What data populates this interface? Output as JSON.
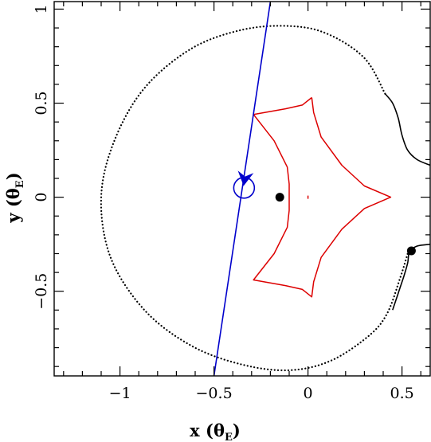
{
  "chart_data": {
    "type": "scatter",
    "xlabel": "x",
    "xlabel_unit": "θ",
    "xlabel_sub": "E",
    "ylabel": "y",
    "ylabel_unit": "θ",
    "ylabel_sub": "E",
    "xlim": [
      -1.35,
      0.65
    ],
    "ylim": [
      -0.95,
      1.04
    ],
    "x_ticks_major": [
      -1,
      -0.5,
      0,
      0.5
    ],
    "x_tick_labels": [
      "−1",
      "−0.5",
      "0",
      "0.5"
    ],
    "y_ticks_major": [
      -0.5,
      0,
      0.5,
      1
    ],
    "y_tick_labels": [
      "−0.5",
      "0",
      "0.5",
      "1"
    ],
    "minor_tick_step": 0.1,
    "grid": false,
    "colors": {
      "critical_curve": "#000000",
      "caustic": "#dd0000",
      "trajectory": "#0000cc",
      "axes": "#000000"
    },
    "critical_curve_outer": {
      "style": "dotted",
      "points": [
        [
          0.41,
          0.55
        ],
        [
          0.3,
          0.74
        ],
        [
          0.1,
          0.87
        ],
        [
          -0.1,
          0.91
        ],
        [
          -0.35,
          0.89
        ],
        [
          -0.62,
          0.79
        ],
        [
          -0.87,
          0.58
        ],
        [
          -1.03,
          0.3
        ],
        [
          -1.1,
          0.0
        ],
        [
          -1.05,
          -0.32
        ],
        [
          -0.87,
          -0.6
        ],
        [
          -0.62,
          -0.79
        ],
        [
          -0.35,
          -0.89
        ],
        [
          -0.1,
          -0.92
        ],
        [
          0.12,
          -0.87
        ],
        [
          0.32,
          -0.74
        ],
        [
          0.42,
          -0.62
        ],
        [
          0.49,
          -0.43
        ],
        [
          0.53,
          -0.3
        ]
      ]
    },
    "critical_curve_right_top": {
      "style": "solid",
      "points": [
        [
          0.41,
          0.55
        ],
        [
          0.45,
          0.5
        ],
        [
          0.48,
          0.42
        ],
        [
          0.5,
          0.33
        ],
        [
          0.53,
          0.25
        ],
        [
          0.58,
          0.2
        ],
        [
          0.65,
          0.17
        ]
      ]
    },
    "critical_curve_right_bottom": {
      "style": "solid",
      "points": [
        [
          0.45,
          -0.6
        ],
        [
          0.48,
          -0.51
        ],
        [
          0.51,
          -0.42
        ],
        [
          0.53,
          -0.35
        ],
        [
          0.54,
          -0.29
        ],
        [
          0.58,
          -0.26
        ],
        [
          0.65,
          -0.25
        ]
      ]
    },
    "caustic": {
      "cusps": [
        [
          0.02,
          0.53
        ],
        [
          0.44,
          0.0
        ],
        [
          0.02,
          -0.53
        ],
        [
          -0.29,
          -0.44
        ],
        [
          -0.29,
          0.44
        ],
        [
          -0.1,
          0.0
        ]
      ],
      "points": [
        [
          0.02,
          0.53
        ],
        [
          0.03,
          0.45
        ],
        [
          0.07,
          0.32
        ],
        [
          0.18,
          0.17
        ],
        [
          0.3,
          0.06
        ],
        [
          0.44,
          0.0
        ],
        [
          0.3,
          -0.06
        ],
        [
          0.18,
          -0.17
        ],
        [
          0.07,
          -0.32
        ],
        [
          0.03,
          -0.45
        ],
        [
          0.02,
          -0.53
        ],
        [
          -0.03,
          -0.49
        ],
        [
          -0.12,
          -0.47
        ],
        [
          -0.29,
          -0.44
        ],
        [
          -0.18,
          -0.3
        ],
        [
          -0.11,
          -0.16
        ],
        [
          -0.1,
          -0.07
        ],
        [
          -0.1,
          0.0
        ],
        [
          -0.1,
          0.07
        ],
        [
          -0.11,
          0.16
        ],
        [
          -0.18,
          0.3
        ],
        [
          -0.29,
          0.44
        ],
        [
          -0.12,
          0.47
        ],
        [
          -0.03,
          0.49
        ],
        [
          0.02,
          0.53
        ]
      ],
      "inner_mark": [
        0.0,
        0.0
      ]
    },
    "trajectory": {
      "start": [
        -0.5,
        -0.95
      ],
      "end": [
        -0.2,
        1.04
      ],
      "direction_arrow_at": [
        -0.335,
        0.11
      ],
      "source_circle": {
        "center": [
          -0.34,
          0.05
        ],
        "radius": 0.055
      }
    },
    "points": [
      [
        -0.15,
        0.0
      ],
      [
        0.55,
        -0.285
      ]
    ]
  }
}
